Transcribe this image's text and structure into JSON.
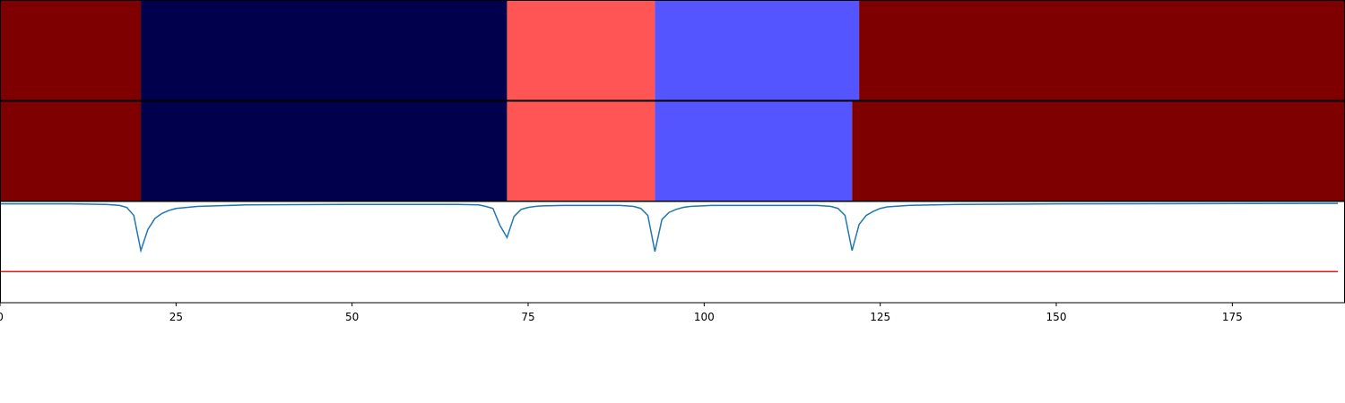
{
  "chart_data": {
    "type": "line",
    "xlim": [
      0,
      191
    ],
    "xticks": [
      0,
      25,
      50,
      75,
      100,
      125,
      150,
      175
    ],
    "ylim": [
      0,
      1
    ],
    "segment_rows": [
      {
        "breakpoints": [
          20,
          72,
          93,
          122
        ],
        "colors": [
          "#7f0000",
          "#00004c",
          "#ff5555",
          "#5555ff",
          "#7f0000"
        ]
      },
      {
        "breakpoints": [
          20,
          72,
          93,
          121
        ],
        "colors": [
          "#7f0000",
          "#00004c",
          "#ff5555",
          "#5555ff",
          "#7f0000"
        ]
      }
    ],
    "x": [
      0,
      10,
      15,
      16,
      17,
      18,
      19,
      20,
      21,
      22,
      23,
      24,
      25,
      28,
      35,
      50,
      65,
      68,
      69,
      70,
      71,
      72,
      73,
      74,
      75,
      76,
      77,
      80,
      88,
      89,
      90,
      91,
      92,
      93,
      94,
      95,
      96,
      97,
      98,
      101,
      108,
      116,
      117,
      118,
      119,
      120,
      121,
      122,
      123,
      124,
      125,
      126,
      129,
      136,
      150,
      190
    ],
    "series": [
      {
        "color": "#1f77b4",
        "values": [
          0.985,
          0.985,
          0.98,
          0.975,
          0.97,
          0.95,
          0.87,
          0.52,
          0.73,
          0.84,
          0.89,
          0.92,
          0.94,
          0.96,
          0.975,
          0.98,
          0.98,
          0.975,
          0.96,
          0.94,
          0.77,
          0.65,
          0.86,
          0.93,
          0.95,
          0.96,
          0.965,
          0.97,
          0.97,
          0.965,
          0.96,
          0.94,
          0.87,
          0.51,
          0.83,
          0.9,
          0.93,
          0.95,
          0.96,
          0.97,
          0.97,
          0.97,
          0.965,
          0.96,
          0.94,
          0.87,
          0.52,
          0.78,
          0.87,
          0.91,
          0.94,
          0.955,
          0.97,
          0.98,
          0.985,
          0.99
        ]
      }
    ],
    "threshold": {
      "value": 0.31,
      "color": "#e31a1c",
      "xrange": [
        0,
        190
      ]
    }
  }
}
